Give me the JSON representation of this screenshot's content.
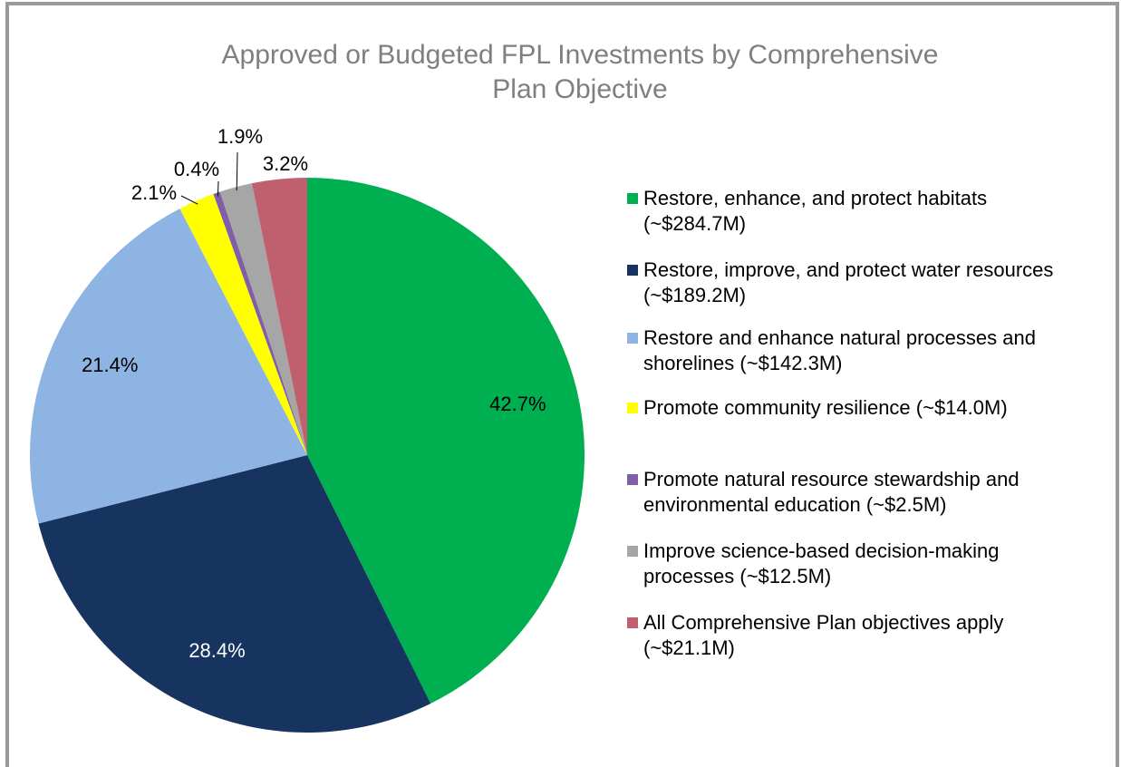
{
  "chart_data": {
    "type": "pie",
    "title": "Approved or Budgeted FPL Investments by Comprehensive Plan Objective",
    "categories": [
      "Restore, enhance, and protect habitats (~$284.7M)",
      "Restore, improve, and protect water resources (~$189.2M)",
      "Restore and enhance natural processes and shorelines (~$142.3M)",
      "Promote community resilience (~$14.0M)",
      "Promote natural resource stewardship and environmental education (~$2.5M)",
      "Improve science-based decision-making processes (~$12.5M)",
      "All Comprehensive Plan objectives apply (~$21.1M)"
    ],
    "values": [
      42.7,
      28.4,
      21.4,
      2.1,
      0.4,
      1.9,
      3.2
    ],
    "value_labels": [
      "42.7%",
      "28.4%",
      "21.4%",
      "2.1%",
      "0.4%",
      "1.9%",
      "3.2%"
    ],
    "colors": [
      "#00b050",
      "#17335f",
      "#8eb4e3",
      "#ffff00",
      "#7f5fa8",
      "#a6a6a6",
      "#c0606f"
    ],
    "legend": "right"
  }
}
